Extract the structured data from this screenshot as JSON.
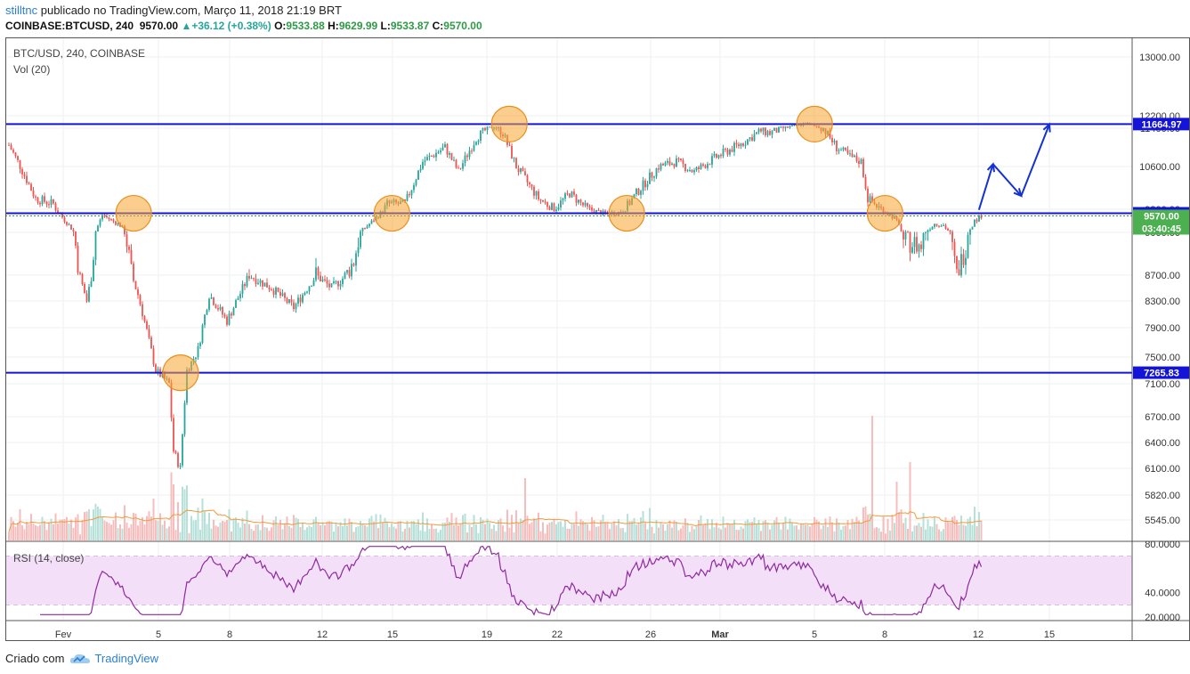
{
  "header": {
    "user": "stilltnc",
    "published_text": " publicado no TradingView.com, Março 11, 2018 21:19 BRT",
    "symbol": "COINBASE:BTCUSD, 240",
    "price": "9570.00",
    "change": "▲+36.12 (+0.38%)",
    "o_label": "O:",
    "o_value": "9533.88",
    "h_label": "H:",
    "h_value": "9629.99",
    "l_label": "L:",
    "l_value": "9533.87",
    "c_label": "C:",
    "c_value": "9570.00"
  },
  "footer": {
    "created_with": "Criado com",
    "brand": "TradingView"
  },
  "colors": {
    "up": "#26a69a",
    "down": "#ef5350",
    "level": "#1414d8",
    "rsi": "#8e2a9e",
    "rsi_band": "#f3e0f8",
    "vol_ma": "#f29a38",
    "circle": "#f7a531",
    "arrow": "#1432d2"
  },
  "chart_data": {
    "type": "candlestick",
    "title": "BTC/USD, 240, COINBASE",
    "volume_label": "Vol (20)",
    "rsi_label": "RSI (14, close)",
    "x_ticks": [
      "Fev",
      "5",
      "8",
      "12",
      "15",
      "19",
      "22",
      "26",
      "Mar",
      "5",
      "8",
      "12",
      "15"
    ],
    "y_ticks": [
      "13000.00",
      "12200.00",
      "11400.00",
      "10600.00",
      "9800.00",
      "9000.00",
      "8700.00",
      "8300.00",
      "7900.00",
      "7500.00",
      "7100.00",
      "6700.00",
      "6400.00",
      "6100.00",
      "5820.00",
      "5545.00"
    ],
    "rsi_ticks": [
      "80.0000",
      "40.0000",
      "20.0000"
    ],
    "rsi_levels": [
      70,
      30
    ],
    "price_levels": [
      {
        "value": "11664.97"
      },
      {
        "value": "9660.08"
      },
      {
        "value": "7265.83"
      }
    ],
    "last_price": "9570.00",
    "countdown": "03:40:45",
    "range": {
      "low": 5900,
      "high": 11780
    },
    "key_points": [
      {
        "date": "Feb 4",
        "price": 9660
      },
      {
        "date": "Feb 6",
        "price": 7265
      },
      {
        "date": "Feb 15",
        "price": 9660
      },
      {
        "date": "Feb 20",
        "price": 11665
      },
      {
        "date": "Feb 25",
        "price": 9660
      },
      {
        "date": "Mar 5",
        "price": 11665
      },
      {
        "date": "Mar 8",
        "price": 9660
      }
    ],
    "projection": [
      {
        "date": "Mar 12",
        "price": 9780
      },
      {
        "date": "Mar 12.6",
        "price": 10650
      },
      {
        "date": "Mar 13.8",
        "price": 10050
      },
      {
        "date": "Mar 15",
        "price": 11650
      }
    ],
    "anchors": [
      [
        0,
        11050
      ],
      [
        12,
        10000
      ],
      [
        20,
        9900
      ],
      [
        28,
        9150
      ],
      [
        35,
        8300
      ],
      [
        42,
        9600
      ],
      [
        50,
        9250
      ],
      [
        58,
        8400
      ],
      [
        66,
        7300
      ],
      [
        72,
        7100
      ],
      [
        74,
        6300
      ],
      [
        77,
        6100
      ],
      [
        80,
        7300
      ],
      [
        85,
        7600
      ],
      [
        90,
        8400
      ],
      [
        98,
        8000
      ],
      [
        108,
        8700
      ],
      [
        118,
        8500
      ],
      [
        128,
        8200
      ],
      [
        138,
        8700
      ],
      [
        145,
        8500
      ],
      [
        155,
        8800
      ],
      [
        165,
        9500
      ],
      [
        170,
        9900
      ],
      [
        178,
        9900
      ],
      [
        186,
        10700
      ],
      [
        196,
        11000
      ],
      [
        202,
        10500
      ],
      [
        210,
        11200
      ],
      [
        218,
        11500
      ],
      [
        222,
        11300
      ],
      [
        228,
        10600
      ],
      [
        238,
        10000
      ],
      [
        245,
        9800
      ],
      [
        252,
        10100
      ],
      [
        260,
        9800
      ],
      [
        268,
        9650
      ],
      [
        275,
        9700
      ],
      [
        282,
        10100
      ],
      [
        292,
        10600
      ],
      [
        300,
        10700
      ],
      [
        308,
        10500
      ],
      [
        318,
        10800
      ],
      [
        330,
        11100
      ],
      [
        338,
        11350
      ],
      [
        342,
        11300
      ],
      [
        352,
        11500
      ],
      [
        358,
        11700
      ],
      [
        362,
        11550
      ],
      [
        366,
        11400
      ],
      [
        372,
        11000
      ],
      [
        378,
        10800
      ],
      [
        383,
        10700
      ],
      [
        386,
        10000
      ],
      [
        392,
        9800
      ],
      [
        398,
        9500
      ],
      [
        402,
        8950
      ],
      [
        410,
        8900
      ],
      [
        416,
        9300
      ],
      [
        420,
        9250
      ],
      [
        426,
        8700
      ],
      [
        430,
        8900
      ],
      [
        434,
        9400
      ],
      [
        437,
        9570
      ]
    ]
  }
}
